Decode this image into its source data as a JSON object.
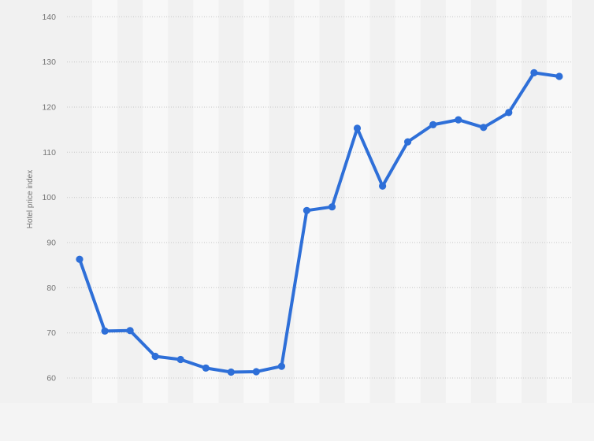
{
  "chart_data": {
    "type": "line",
    "title": "",
    "xlabel": "",
    "ylabel": "Hotel price index",
    "x": [
      1,
      2,
      3,
      4,
      5,
      6,
      7,
      8,
      9,
      10,
      11,
      12,
      13,
      14,
      15,
      16,
      17,
      18,
      19,
      20
    ],
    "values": [
      86.3,
      70.4,
      70.5,
      64.8,
      64.1,
      62.2,
      61.3,
      61.4,
      62.6,
      97.1,
      97.9,
      115.3,
      102.5,
      112.3,
      116.1,
      117.2,
      115.5,
      118.8,
      127.6,
      126.8
    ],
    "y_ticks": [
      60,
      70,
      80,
      90,
      100,
      110,
      120,
      130,
      140
    ],
    "y_tick_labels": [
      "60",
      "70",
      "80",
      "90",
      "100",
      "110",
      "120",
      "130",
      "140"
    ],
    "ylim": [
      60,
      140
    ],
    "x_tick_labels_visible": false,
    "legend": "none",
    "grid": "horizontal-dotted",
    "plot_background": "alternating-vertical-bands",
    "series_name": "Hotel price index"
  },
  "colors": {
    "line": "#2e6fd8",
    "marker": "#2e6fd8",
    "grid": "#c6c6c6",
    "tick_text": "#757575",
    "axis_title_text": "#757575",
    "page_background": "#f1f1f1",
    "band_light": "#f8f8f8",
    "band_dark": "#f1f1f1",
    "footer_background": "#f4f4f4"
  }
}
